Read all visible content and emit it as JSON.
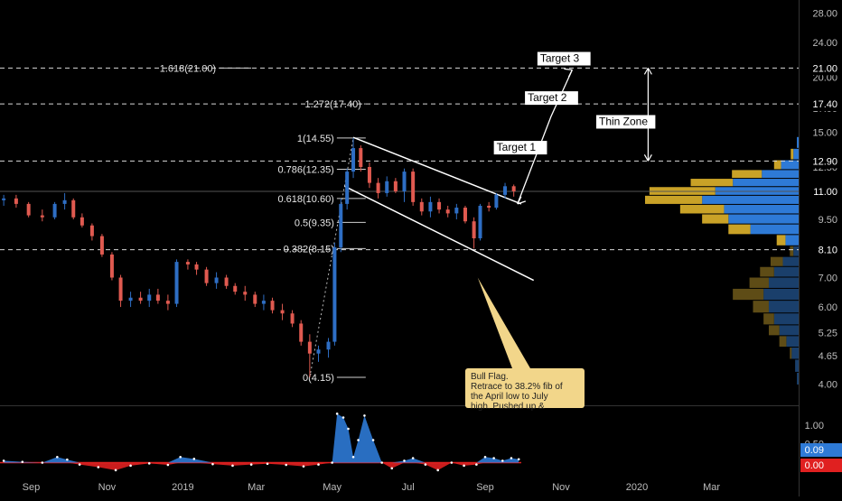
{
  "colors": {
    "background": "#000000",
    "up": "#2e6ec4",
    "down": "#e05a50",
    "text": "#c8c8c8",
    "label_bg": "#ffffff",
    "profile_blue": "#2e7ad6",
    "profile_gold": "#c9a227",
    "osc_positive": "#2e7ad6",
    "osc_negative": "#e02020",
    "note_bg": "#f2d68a"
  },
  "chart_data": {
    "type": "candlestick",
    "title": "",
    "price_axis": {
      "ticks": [
        "28.00",
        "24.00",
        "20.00",
        "17.00",
        "15.00",
        "12.50",
        "11.00",
        "9.50",
        "8.25",
        "7.00",
        "6.00",
        "5.25",
        "4.65",
        "4.00"
      ],
      "scale": "log",
      "range": [
        3.6,
        30.0
      ]
    },
    "price_markers": [
      {
        "label": "21.00",
        "value": 21.0
      },
      {
        "label": "17.40",
        "value": 17.4
      },
      {
        "label": "12.90",
        "value": 12.9
      },
      {
        "label": "11.00",
        "value": 11.0
      },
      {
        "label": "8.10",
        "value": 8.1
      }
    ],
    "time_axis": {
      "labels": [
        "Sep",
        "Nov",
        "2019",
        "Mar",
        "May",
        "Jul",
        "Sep",
        "Nov",
        "2020",
        "Mar"
      ],
      "dates": [
        "2018-09-01",
        "2018-11-01",
        "2019-01-01",
        "2019-03-01",
        "2019-05-01",
        "2019-07-01",
        "2019-09-01",
        "2019-11-01",
        "2020-01-01",
        "2020-03-01"
      ],
      "range": [
        "2018-08-07",
        "2020-05-10"
      ]
    },
    "candles": [
      {
        "date": "2018-08-10",
        "o": 10.5,
        "h": 10.8,
        "l": 10.2,
        "c": 10.6
      },
      {
        "date": "2018-08-20",
        "o": 10.6,
        "h": 10.8,
        "l": 10.1,
        "c": 10.3
      },
      {
        "date": "2018-08-30",
        "o": 10.3,
        "h": 10.4,
        "l": 9.6,
        "c": 9.7
      },
      {
        "date": "2018-09-10",
        "o": 9.7,
        "h": 10.0,
        "l": 9.4,
        "c": 9.6
      },
      {
        "date": "2018-09-20",
        "o": 9.6,
        "h": 10.4,
        "l": 9.5,
        "c": 10.3
      },
      {
        "date": "2018-09-28",
        "o": 10.3,
        "h": 10.9,
        "l": 10.0,
        "c": 10.5
      },
      {
        "date": "2018-10-05",
        "o": 10.5,
        "h": 10.6,
        "l": 9.5,
        "c": 9.6
      },
      {
        "date": "2018-10-12",
        "o": 9.6,
        "h": 9.8,
        "l": 9.1,
        "c": 9.2
      },
      {
        "date": "2018-10-20",
        "o": 9.2,
        "h": 9.3,
        "l": 8.5,
        "c": 8.7
      },
      {
        "date": "2018-10-28",
        "o": 8.7,
        "h": 8.8,
        "l": 7.8,
        "c": 7.9
      },
      {
        "date": "2018-11-05",
        "o": 7.9,
        "h": 8.0,
        "l": 6.9,
        "c": 7.0
      },
      {
        "date": "2018-11-12",
        "o": 7.0,
        "h": 7.1,
        "l": 6.0,
        "c": 6.2
      },
      {
        "date": "2018-11-20",
        "o": 6.2,
        "h": 6.5,
        "l": 6.0,
        "c": 6.3
      },
      {
        "date": "2018-11-28",
        "o": 6.3,
        "h": 6.5,
        "l": 6.1,
        "c": 6.2
      },
      {
        "date": "2018-12-05",
        "o": 6.2,
        "h": 6.6,
        "l": 6.0,
        "c": 6.4
      },
      {
        "date": "2018-12-12",
        "o": 6.4,
        "h": 6.6,
        "l": 6.1,
        "c": 6.2
      },
      {
        "date": "2018-12-20",
        "o": 6.2,
        "h": 6.4,
        "l": 5.9,
        "c": 6.1
      },
      {
        "date": "2018-12-27",
        "o": 6.1,
        "h": 7.7,
        "l": 6.0,
        "c": 7.6
      },
      {
        "date": "2019-01-05",
        "o": 7.6,
        "h": 7.7,
        "l": 7.3,
        "c": 7.5
      },
      {
        "date": "2019-01-12",
        "o": 7.5,
        "h": 7.6,
        "l": 7.1,
        "c": 7.3
      },
      {
        "date": "2019-01-20",
        "o": 7.3,
        "h": 7.4,
        "l": 6.7,
        "c": 6.8
      },
      {
        "date": "2019-01-28",
        "o": 6.8,
        "h": 7.2,
        "l": 6.6,
        "c": 7.0
      },
      {
        "date": "2019-02-05",
        "o": 7.0,
        "h": 7.1,
        "l": 6.6,
        "c": 6.7
      },
      {
        "date": "2019-02-12",
        "o": 6.7,
        "h": 6.8,
        "l": 6.4,
        "c": 6.5
      },
      {
        "date": "2019-02-20",
        "o": 6.5,
        "h": 6.7,
        "l": 6.2,
        "c": 6.4
      },
      {
        "date": "2019-02-28",
        "o": 6.4,
        "h": 6.5,
        "l": 6.0,
        "c": 6.1
      },
      {
        "date": "2019-03-07",
        "o": 6.1,
        "h": 6.4,
        "l": 5.9,
        "c": 6.2
      },
      {
        "date": "2019-03-14",
        "o": 6.2,
        "h": 6.3,
        "l": 5.8,
        "c": 5.9
      },
      {
        "date": "2019-03-22",
        "o": 5.9,
        "h": 6.1,
        "l": 5.6,
        "c": 5.8
      },
      {
        "date": "2019-03-30",
        "o": 5.8,
        "h": 5.9,
        "l": 5.4,
        "c": 5.5
      },
      {
        "date": "2019-04-06",
        "o": 5.5,
        "h": 5.6,
        "l": 4.9,
        "c": 5.0
      },
      {
        "date": "2019-04-13",
        "o": 5.0,
        "h": 5.2,
        "l": 4.15,
        "c": 4.7
      },
      {
        "date": "2019-04-20",
        "o": 4.7,
        "h": 4.9,
        "l": 4.5,
        "c": 4.8
      },
      {
        "date": "2019-04-28",
        "o": 4.8,
        "h": 5.1,
        "l": 4.6,
        "c": 5.0
      },
      {
        "date": "2019-05-03",
        "o": 5.0,
        "h": 8.4,
        "l": 4.9,
        "c": 8.2
      },
      {
        "date": "2019-05-08",
        "o": 8.2,
        "h": 10.6,
        "l": 8.0,
        "c": 10.3
      },
      {
        "date": "2019-05-13",
        "o": 10.3,
        "h": 12.4,
        "l": 10.0,
        "c": 12.2
      },
      {
        "date": "2019-05-18",
        "o": 12.2,
        "h": 14.55,
        "l": 11.8,
        "c": 13.8
      },
      {
        "date": "2019-05-24",
        "o": 13.8,
        "h": 14.0,
        "l": 12.2,
        "c": 12.5
      },
      {
        "date": "2019-05-31",
        "o": 12.5,
        "h": 12.8,
        "l": 11.2,
        "c": 11.5
      },
      {
        "date": "2019-06-07",
        "o": 11.5,
        "h": 11.8,
        "l": 10.6,
        "c": 10.9
      },
      {
        "date": "2019-06-14",
        "o": 10.9,
        "h": 11.9,
        "l": 10.7,
        "c": 11.6
      },
      {
        "date": "2019-06-21",
        "o": 11.6,
        "h": 11.8,
        "l": 10.9,
        "c": 11.0
      },
      {
        "date": "2019-06-28",
        "o": 11.0,
        "h": 12.4,
        "l": 10.4,
        "c": 12.2
      },
      {
        "date": "2019-07-05",
        "o": 12.2,
        "h": 12.4,
        "l": 10.2,
        "c": 10.4
      },
      {
        "date": "2019-07-12",
        "o": 10.4,
        "h": 10.6,
        "l": 9.7,
        "c": 9.9
      },
      {
        "date": "2019-07-19",
        "o": 9.9,
        "h": 10.7,
        "l": 9.6,
        "c": 10.4
      },
      {
        "date": "2019-07-26",
        "o": 10.4,
        "h": 10.6,
        "l": 9.8,
        "c": 10.0
      },
      {
        "date": "2019-08-02",
        "o": 10.0,
        "h": 10.2,
        "l": 9.6,
        "c": 9.8
      },
      {
        "date": "2019-08-09",
        "o": 9.8,
        "h": 10.3,
        "l": 9.5,
        "c": 10.1
      },
      {
        "date": "2019-08-16",
        "o": 10.1,
        "h": 10.2,
        "l": 9.3,
        "c": 9.4
      },
      {
        "date": "2019-08-23",
        "o": 9.4,
        "h": 9.6,
        "l": 8.15,
        "c": 8.6
      },
      {
        "date": "2019-08-28",
        "o": 8.6,
        "h": 10.3,
        "l": 8.5,
        "c": 10.2
      },
      {
        "date": "2019-09-04",
        "o": 10.2,
        "h": 10.4,
        "l": 9.9,
        "c": 10.1
      },
      {
        "date": "2019-09-10",
        "o": 10.1,
        "h": 10.9,
        "l": 10.0,
        "c": 10.8
      },
      {
        "date": "2019-09-17",
        "o": 10.8,
        "h": 11.5,
        "l": 10.6,
        "c": 11.3
      },
      {
        "date": "2019-09-24",
        "o": 11.3,
        "h": 11.4,
        "l": 10.7,
        "c": 11.0
      }
    ],
    "fibonacci": [
      {
        "label": "1.618(21.00)",
        "value": 21.0
      },
      {
        "label": "1.272(17.40)",
        "value": 17.4
      },
      {
        "label": "1(14.55)",
        "value": 14.55
      },
      {
        "label": "0.786(12.35)",
        "value": 12.35
      },
      {
        "label": "0.618(10.60)",
        "value": 10.6
      },
      {
        "label": "0.5(9.35)",
        "value": 9.35
      },
      {
        "label": "0.382(8.15)",
        "value": 8.15
      },
      {
        "label": "0(4.15)",
        "value": 4.15
      }
    ],
    "targets": [
      {
        "label": "Target 1",
        "value": 12.9
      },
      {
        "label": "Target 2",
        "value": 17.4
      },
      {
        "label": "Target 3",
        "value": 21.0
      }
    ],
    "zone": {
      "label": "Thin Zone",
      "from": 12.9,
      "to": 21.0
    },
    "note": {
      "lines": [
        "Bull Flag.",
        "Retrace to 38.2% fib of",
        "the April low to July",
        "high. Pushed up &"
      ]
    },
    "volume_profile": [
      {
        "price": 14.2,
        "blue": 2,
        "gold": 0
      },
      {
        "price": 13.3,
        "blue": 6,
        "gold": 3
      },
      {
        "price": 12.6,
        "blue": 20,
        "gold": 8
      },
      {
        "price": 12.0,
        "blue": 42,
        "gold": 34
      },
      {
        "price": 11.5,
        "blue": 75,
        "gold": 48
      },
      {
        "price": 11.0,
        "blue": 95,
        "gold": 75
      },
      {
        "price": 10.5,
        "blue": 110,
        "gold": 65
      },
      {
        "price": 10.0,
        "blue": 85,
        "gold": 50
      },
      {
        "price": 9.5,
        "blue": 80,
        "gold": 30
      },
      {
        "price": 9.0,
        "blue": 55,
        "gold": 25
      },
      {
        "price": 8.5,
        "blue": 15,
        "gold": 10
      },
      {
        "price": 8.0,
        "blue": 6,
        "gold": 4
      },
      {
        "price": 7.6,
        "blue": 18,
        "gold": 14
      },
      {
        "price": 7.2,
        "blue": 28,
        "gold": 16
      },
      {
        "price": 6.8,
        "blue": 34,
        "gold": 22
      },
      {
        "price": 6.4,
        "blue": 40,
        "gold": 35
      },
      {
        "price": 6.0,
        "blue": 34,
        "gold": 18
      },
      {
        "price": 5.6,
        "blue": 28,
        "gold": 12
      },
      {
        "price": 5.3,
        "blue": 22,
        "gold": 12
      },
      {
        "price": 5.0,
        "blue": 14,
        "gold": 8
      },
      {
        "price": 4.7,
        "blue": 8,
        "gold": 2
      },
      {
        "price": 4.4,
        "blue": 4,
        "gold": 0
      },
      {
        "price": 4.1,
        "blue": 2,
        "gold": 0
      }
    ],
    "oscillator": {
      "ticks": [
        "1.00",
        "0.50"
      ],
      "markers": [
        {
          "label": "0.09",
          "value": 0.09,
          "color": "#2e7ad6"
        },
        {
          "label": "0.00",
          "value": 0.0,
          "color": "#e02020"
        }
      ],
      "range": [
        -0.3,
        1.5
      ],
      "points": [
        {
          "date": "2018-08-10",
          "v": 0.05
        },
        {
          "date": "2018-08-25",
          "v": 0.02
        },
        {
          "date": "2018-09-10",
          "v": 0.0
        },
        {
          "date": "2018-09-22",
          "v": 0.15
        },
        {
          "date": "2018-09-30",
          "v": 0.08
        },
        {
          "date": "2018-10-10",
          "v": -0.05
        },
        {
          "date": "2018-10-25",
          "v": -0.12
        },
        {
          "date": "2018-11-08",
          "v": -0.2
        },
        {
          "date": "2018-11-20",
          "v": -0.08
        },
        {
          "date": "2018-12-05",
          "v": -0.02
        },
        {
          "date": "2018-12-20",
          "v": -0.06
        },
        {
          "date": "2018-12-30",
          "v": 0.15
        },
        {
          "date": "2019-01-10",
          "v": 0.1
        },
        {
          "date": "2019-01-25",
          "v": -0.04
        },
        {
          "date": "2019-02-10",
          "v": -0.08
        },
        {
          "date": "2019-02-25",
          "v": -0.05
        },
        {
          "date": "2019-03-10",
          "v": -0.03
        },
        {
          "date": "2019-03-25",
          "v": -0.06
        },
        {
          "date": "2019-04-08",
          "v": -0.1
        },
        {
          "date": "2019-04-20",
          "v": -0.05
        },
        {
          "date": "2019-05-01",
          "v": 0.0
        },
        {
          "date": "2019-05-05",
          "v": 1.3
        },
        {
          "date": "2019-05-10",
          "v": 1.2
        },
        {
          "date": "2019-05-14",
          "v": 0.9
        },
        {
          "date": "2019-05-18",
          "v": 0.15
        },
        {
          "date": "2019-05-22",
          "v": 0.6
        },
        {
          "date": "2019-05-27",
          "v": 1.25
        },
        {
          "date": "2019-06-03",
          "v": 0.6
        },
        {
          "date": "2019-06-10",
          "v": 0.0
        },
        {
          "date": "2019-06-18",
          "v": -0.15
        },
        {
          "date": "2019-06-28",
          "v": 0.05
        },
        {
          "date": "2019-07-05",
          "v": 0.12
        },
        {
          "date": "2019-07-15",
          "v": -0.05
        },
        {
          "date": "2019-07-25",
          "v": -0.2
        },
        {
          "date": "2019-08-05",
          "v": 0.0
        },
        {
          "date": "2019-08-15",
          "v": -0.08
        },
        {
          "date": "2019-08-25",
          "v": -0.05
        },
        {
          "date": "2019-09-01",
          "v": 0.15
        },
        {
          "date": "2019-09-08",
          "v": 0.12
        },
        {
          "date": "2019-09-15",
          "v": 0.05
        },
        {
          "date": "2019-09-22",
          "v": 0.12
        },
        {
          "date": "2019-09-28",
          "v": 0.09
        }
      ]
    }
  }
}
